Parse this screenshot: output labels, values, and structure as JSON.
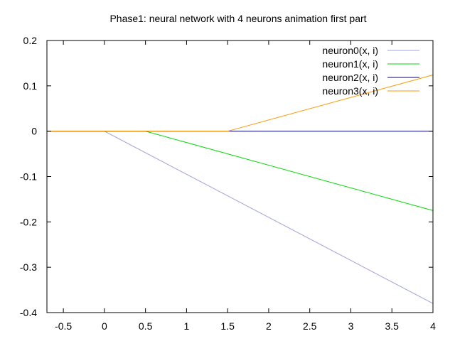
{
  "chart_data": {
    "type": "line",
    "title": "Phase1: neural network with 4 neurons animation first part",
    "xlabel": "",
    "ylabel": "",
    "xlim": [
      -0.7,
      4
    ],
    "ylim": [
      -0.4,
      0.2
    ],
    "x_ticks": [
      -0.5,
      0,
      0.5,
      1,
      1.5,
      2,
      2.5,
      3,
      3.5,
      4
    ],
    "x_tick_labels": [
      "-0.5",
      "0",
      "0.5",
      "1",
      "1.5",
      "2",
      "2.5",
      "3",
      "3.5",
      "4"
    ],
    "y_ticks": [
      -0.4,
      -0.3,
      -0.2,
      -0.1,
      0,
      0.1,
      0.2
    ],
    "y_tick_labels": [
      "-0.4",
      "-0.3",
      "-0.2",
      "-0.1",
      "0",
      "0.1",
      "0.2"
    ],
    "grid": false,
    "legend_position": "top-right",
    "series": [
      {
        "name": "neuron0(x, i)",
        "color": "#a0a0e0",
        "points": [
          [
            -0.7,
            0
          ],
          [
            0,
            0
          ],
          [
            4,
            -0.38
          ]
        ]
      },
      {
        "name": "neuron1(x, i)",
        "color": "#00dd00",
        "points": [
          [
            -0.7,
            0
          ],
          [
            0.5,
            0
          ],
          [
            4,
            -0.175
          ]
        ]
      },
      {
        "name": "neuron2(x, i)",
        "color": "#000080",
        "points": [
          [
            -0.7,
            0
          ],
          [
            4,
            0
          ]
        ]
      },
      {
        "name": "neuron3(x, i)",
        "color": "#ff9900",
        "points": [
          [
            -0.7,
            0
          ],
          [
            1.5,
            0
          ],
          [
            4,
            0.124
          ]
        ]
      }
    ]
  }
}
